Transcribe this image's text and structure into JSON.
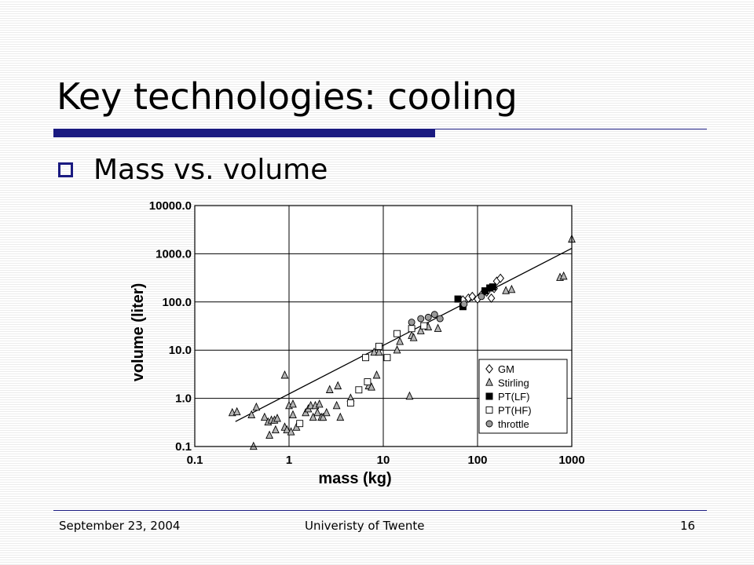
{
  "slide": {
    "title": "Key technologies: cooling",
    "bullet": "Mass vs. volume",
    "footer_date": "September 23, 2004",
    "footer_org": "Univeristy of Twente",
    "page_number": "16",
    "accent_color": "#1a1a80"
  },
  "chart_data": {
    "type": "scatter",
    "xlabel": "mass (kg)",
    "ylabel": "volume (liter)",
    "x_scale": "log",
    "y_scale": "log",
    "xlim": [
      0.1,
      1000
    ],
    "ylim": [
      0.1,
      10000
    ],
    "x_ticks": [
      "0.1",
      "1",
      "10",
      "100",
      "1000"
    ],
    "y_ticks": [
      "0.1",
      "1.0",
      "10.0",
      "100.0",
      "1000.0",
      "10000.0"
    ],
    "grid": true,
    "legend_position": "bottom-right",
    "series": [
      {
        "name": "GM",
        "marker": "diamond-open",
        "points": [
          [
            70,
            110
          ],
          [
            80,
            120
          ],
          [
            88,
            130
          ],
          [
            100,
            115
          ],
          [
            110,
            140
          ],
          [
            125,
            160
          ],
          [
            140,
            120
          ],
          [
            150,
            190
          ],
          [
            160,
            270
          ],
          [
            175,
            310
          ]
        ]
      },
      {
        "name": "Stirling",
        "marker": "triangle-gray",
        "points": [
          [
            0.25,
            0.5
          ],
          [
            0.28,
            0.52
          ],
          [
            0.4,
            0.45
          ],
          [
            0.42,
            0.1
          ],
          [
            0.45,
            0.65
          ],
          [
            0.55,
            0.4
          ],
          [
            0.6,
            0.32
          ],
          [
            0.62,
            0.17
          ],
          [
            0.65,
            0.35
          ],
          [
            0.7,
            0.35
          ],
          [
            0.72,
            0.22
          ],
          [
            0.75,
            0.38
          ],
          [
            0.9,
            3.0
          ],
          [
            0.9,
            0.25
          ],
          [
            0.95,
            0.22
          ],
          [
            1.0,
            0.7
          ],
          [
            1.05,
            0.2
          ],
          [
            1.1,
            0.45
          ],
          [
            1.1,
            0.75
          ],
          [
            1.2,
            0.25
          ],
          [
            1.5,
            0.5
          ],
          [
            1.6,
            0.6
          ],
          [
            1.7,
            0.7
          ],
          [
            1.8,
            0.4
          ],
          [
            1.9,
            0.7
          ],
          [
            2.0,
            0.5
          ],
          [
            2.1,
            0.75
          ],
          [
            2.2,
            0.4
          ],
          [
            2.3,
            0.4
          ],
          [
            2.5,
            0.5
          ],
          [
            2.7,
            1.5
          ],
          [
            3.2,
            0.7
          ],
          [
            3.3,
            1.8
          ],
          [
            3.5,
            0.4
          ],
          [
            4.5,
            1.0
          ],
          [
            7,
            1.8
          ],
          [
            7.5,
            1.7
          ],
          [
            8,
            9
          ],
          [
            8.5,
            3
          ],
          [
            9,
            9
          ],
          [
            14,
            10
          ],
          [
            15,
            15
          ],
          [
            19,
            1.1
          ],
          [
            20,
            20
          ],
          [
            21,
            18
          ],
          [
            25,
            25
          ],
          [
            30,
            30
          ],
          [
            38,
            28
          ],
          [
            200,
            170
          ],
          [
            230,
            180
          ],
          [
            750,
            320
          ],
          [
            820,
            340
          ],
          [
            1000,
            2000
          ]
        ]
      },
      {
        "name": "PT(LF)",
        "marker": "square-filled",
        "points": [
          [
            62,
            115
          ],
          [
            70,
            80
          ],
          [
            120,
            170
          ],
          [
            135,
            195
          ],
          [
            145,
            205
          ]
        ]
      },
      {
        "name": "PT(HF)",
        "marker": "square-open",
        "points": [
          [
            1.3,
            0.3
          ],
          [
            4.5,
            0.8
          ],
          [
            5.5,
            1.5
          ],
          [
            6.5,
            7
          ],
          [
            6.8,
            2.2
          ],
          [
            9,
            12
          ],
          [
            11,
            7
          ],
          [
            14,
            22
          ],
          [
            20,
            28
          ],
          [
            27,
            32
          ]
        ]
      },
      {
        "name": "throttle",
        "marker": "circle-gray",
        "points": [
          [
            20,
            38
          ],
          [
            25,
            45
          ],
          [
            30,
            48
          ],
          [
            35,
            55
          ],
          [
            40,
            45
          ],
          [
            72,
            90
          ],
          [
            110,
            130
          ]
        ]
      }
    ],
    "fit_line": {
      "x": [
        0.27,
        1000
      ],
      "y": [
        0.33,
        1300
      ]
    }
  }
}
